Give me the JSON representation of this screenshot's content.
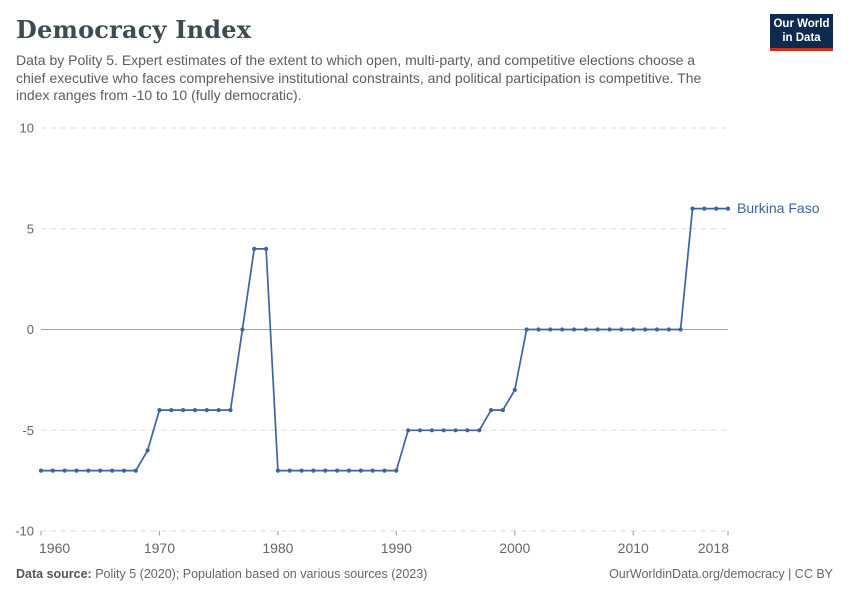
{
  "header": {
    "title": "Democracy Index",
    "subtitle_lines": [
      "Data by Polity 5. Expert estimates of the extent to which open, multi-party, and competitive elections choose a",
      "chief executive who faces comprehensive institutional constraints, and political participation is competitive. The",
      "index ranges from -10 to 10 (fully democratic)."
    ],
    "logo": {
      "line1": "Our World",
      "line2": "in Data",
      "bg_color": "#0e2a4e",
      "bar_color": "#cd2d1e"
    }
  },
  "chart_data": {
    "type": "line",
    "title": "Democracy Index",
    "entity": "Burkina Faso",
    "xlabel": "",
    "ylabel": "",
    "xlim": [
      1960,
      2018
    ],
    "ylim": [
      -10,
      10
    ],
    "yticks": [
      10,
      5,
      0,
      -5,
      -10
    ],
    "xticks": [
      1960,
      1970,
      1980,
      1990,
      2000,
      2010,
      2018
    ],
    "grid": "horizontal-dashed, zero-line-solid",
    "legend_position": "end-of-line-label",
    "line_color": "#3d64a0",
    "axis_text_color": "#666666",
    "years": [
      1960,
      1961,
      1962,
      1963,
      1964,
      1965,
      1966,
      1967,
      1968,
      1969,
      1970,
      1971,
      1972,
      1973,
      1974,
      1975,
      1976,
      1977,
      1978,
      1979,
      1980,
      1981,
      1982,
      1983,
      1984,
      1985,
      1986,
      1987,
      1988,
      1989,
      1990,
      1991,
      1992,
      1993,
      1994,
      1995,
      1996,
      1997,
      1998,
      1999,
      2000,
      2001,
      2002,
      2003,
      2004,
      2005,
      2006,
      2007,
      2008,
      2009,
      2010,
      2011,
      2012,
      2013,
      2014,
      2015,
      2016,
      2017,
      2018
    ],
    "values": [
      -7,
      -7,
      -7,
      -7,
      -7,
      -7,
      -7,
      -7,
      -7,
      -6,
      -4,
      -4,
      -4,
      -4,
      -4,
      -4,
      -4,
      0,
      4,
      4,
      -7,
      -7,
      -7,
      -7,
      -7,
      -7,
      -7,
      -7,
      -7,
      -7,
      -7,
      -5,
      -5,
      -5,
      -5,
      -5,
      -5,
      -5,
      -4,
      -4,
      -3,
      0,
      0,
      0,
      0,
      0,
      0,
      0,
      0,
      0,
      0,
      0,
      0,
      0,
      0,
      6,
      6,
      6,
      6
    ]
  },
  "footer": {
    "source_label": "Data source:",
    "source_text": "Polity 5 (2020); Population based on various sources (2023)",
    "license_text": "OurWorldinData.org/democracy | CC BY"
  }
}
